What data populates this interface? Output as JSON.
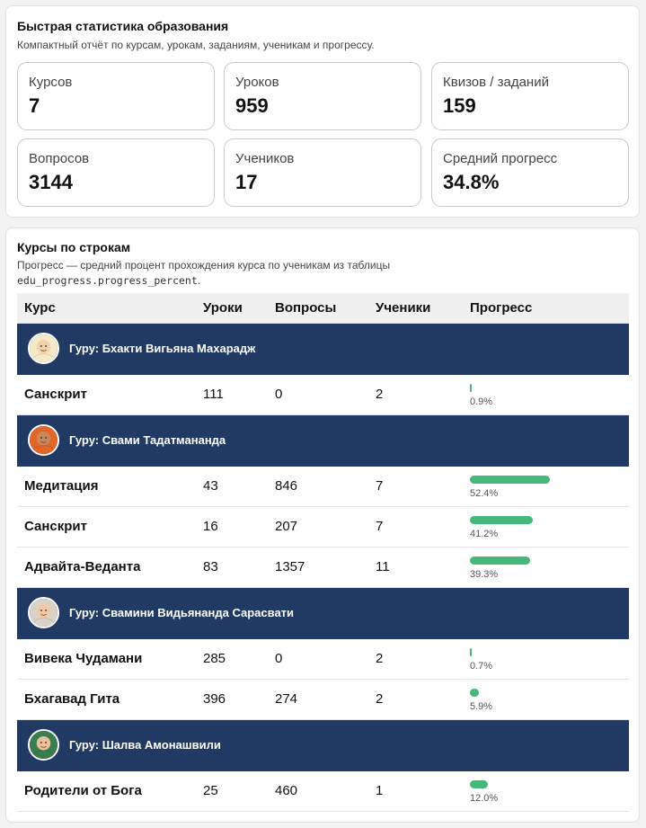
{
  "stats_card": {
    "title": "Быстрая статистика образования",
    "subtitle": "Компактный отчёт по курсам, урокам, заданиям, ученикам и прогрессу.",
    "stats": [
      {
        "label": "Курсов",
        "value": "7"
      },
      {
        "label": "Уроков",
        "value": "959"
      },
      {
        "label": "Квизов / заданий",
        "value": "159"
      },
      {
        "label": "Вопросов",
        "value": "3144"
      },
      {
        "label": "Учеников",
        "value": "17"
      },
      {
        "label": "Средний прогресс",
        "value": "34.8%"
      }
    ]
  },
  "courses_card": {
    "title": "Курсы по строкам",
    "subtitle": "Прогресс — средний процент прохождения курса по ученикам из таблицы",
    "subtitle_code": "edu_progress.progress_percent",
    "subtitle_end": ".",
    "columns": [
      "Курс",
      "Уроки",
      "Вопросы",
      "Ученики",
      "Прогресс"
    ],
    "groups": [
      {
        "guru": "Гуру: Бхакти Вигьяна Махарадж",
        "avatar_icon": "guru-portrait-icon",
        "courses": [
          {
            "name": "Санскрит",
            "lessons": "111",
            "questions": "0",
            "students": "2",
            "progress": 0.9,
            "progress_label": "0.9%"
          }
        ]
      },
      {
        "guru": "Гуру: Свами Тадатмананда",
        "avatar_icon": "guru-portrait-icon",
        "courses": [
          {
            "name": "Медитация",
            "lessons": "43",
            "questions": "846",
            "students": "7",
            "progress": 52.4,
            "progress_label": "52.4%"
          },
          {
            "name": "Санскрит",
            "lessons": "16",
            "questions": "207",
            "students": "7",
            "progress": 41.2,
            "progress_label": "41.2%"
          },
          {
            "name": "Адвайта-Веданта",
            "lessons": "83",
            "questions": "1357",
            "students": "11",
            "progress": 39.3,
            "progress_label": "39.3%"
          }
        ]
      },
      {
        "guru": "Гуру: Свамини Видьянанда Сарасвати",
        "avatar_icon": "guru-portrait-icon",
        "courses": [
          {
            "name": "Вивека Чудамани",
            "lessons": "285",
            "questions": "0",
            "students": "2",
            "progress": 0.7,
            "progress_label": "0.7%"
          },
          {
            "name": "Бхагавад Гита",
            "lessons": "396",
            "questions": "274",
            "students": "2",
            "progress": 5.9,
            "progress_label": "5.9%"
          }
        ]
      },
      {
        "guru": "Гуру: Шалва Амонашвили",
        "avatar_icon": "guru-portrait-icon",
        "courses": [
          {
            "name": "Родители от Бога",
            "lessons": "25",
            "questions": "460",
            "students": "1",
            "progress": 12.0,
            "progress_label": "12.0%"
          }
        ]
      }
    ],
    "colors": {
      "header_row": "#213a63",
      "progress_bar": "#45b87a"
    }
  }
}
